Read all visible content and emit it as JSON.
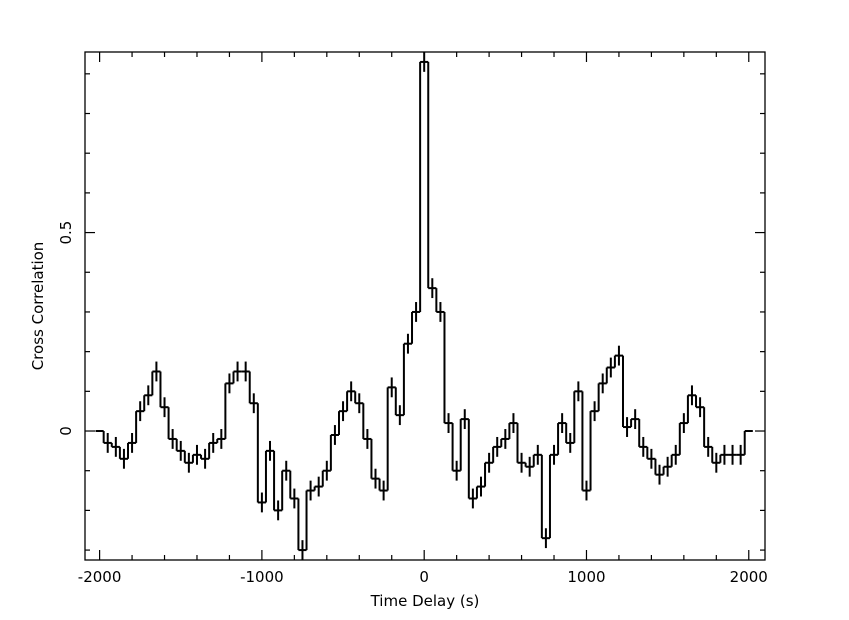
{
  "chart_data": {
    "type": "step",
    "xlabel": "Time Delay (s)",
    "ylabel": "Cross Correlation",
    "xlim": [
      -2090,
      2100
    ],
    "ylim": [
      -0.325,
      0.955
    ],
    "xticks": [
      -2000,
      -1000,
      0,
      1000,
      2000
    ],
    "yticks": [
      0,
      0.5
    ],
    "xminorticks": [
      -1800,
      -1600,
      -1400,
      -1200,
      -800,
      -600,
      -400,
      -200,
      200,
      400,
      600,
      800,
      1200,
      1400,
      1600,
      1800
    ],
    "yminorticks": [
      -0.3,
      -0.2,
      -0.1,
      0.1,
      0.2,
      0.3,
      0.4,
      0.6,
      0.7,
      0.8,
      0.9
    ],
    "color": "#000000",
    "x": [
      -2000,
      -1950,
      -1900,
      -1850,
      -1800,
      -1750,
      -1700,
      -1650,
      -1600,
      -1550,
      -1500,
      -1450,
      -1400,
      -1350,
      -1300,
      -1250,
      -1200,
      -1150,
      -1100,
      -1050,
      -1000,
      -950,
      -900,
      -850,
      -800,
      -750,
      -700,
      -650,
      -600,
      -550,
      -500,
      -450,
      -400,
      -350,
      -300,
      -250,
      -200,
      -150,
      -100,
      -50,
      0,
      50,
      100,
      150,
      200,
      250,
      300,
      350,
      400,
      450,
      500,
      550,
      600,
      650,
      700,
      750,
      800,
      850,
      900,
      950,
      1000,
      1050,
      1100,
      1150,
      1200,
      1250,
      1300,
      1350,
      1400,
      1450,
      1500,
      1550,
      1600,
      1650,
      1700,
      1750,
      1800,
      1850,
      1900,
      1950,
      2000
    ],
    "values": [
      0,
      -0.03,
      -0.04,
      -0.07,
      -0.03,
      0.05,
      0.09,
      0.15,
      0.06,
      -0.02,
      -0.05,
      -0.08,
      -0.06,
      -0.07,
      -0.03,
      -0.02,
      0.12,
      0.15,
      0.15,
      0.07,
      -0.18,
      -0.05,
      -0.2,
      -0.1,
      -0.17,
      -0.3,
      -0.15,
      -0.14,
      -0.1,
      -0.01,
      0.05,
      0.1,
      0.07,
      -0.02,
      -0.12,
      -0.15,
      0.11,
      0.04,
      0.22,
      0.3,
      0.93,
      0.36,
      0.3,
      0.02,
      -0.1,
      0.03,
      -0.17,
      -0.14,
      -0.08,
      -0.04,
      -0.02,
      0.02,
      -0.08,
      -0.09,
      -0.06,
      -0.27,
      -0.06,
      0.02,
      -0.03,
      0.1,
      -0.15,
      0.05,
      0.12,
      0.16,
      0.19,
      0.01,
      0.03,
      -0.04,
      -0.07,
      -0.11,
      -0.09,
      -0.06,
      0.02,
      0.09,
      0.06,
      -0.04,
      -0.08,
      -0.06,
      -0.06,
      -0.06,
      0
    ],
    "errors": [
      0,
      0.025,
      0.025,
      0.025,
      0.025,
      0.025,
      0.025,
      0.025,
      0.025,
      0.025,
      0.025,
      0.025,
      0.025,
      0.025,
      0.025,
      0.025,
      0.025,
      0.025,
      0.025,
      0.025,
      0.025,
      0.025,
      0.025,
      0.025,
      0.025,
      0.025,
      0.025,
      0.025,
      0.025,
      0.025,
      0.025,
      0.025,
      0.025,
      0.025,
      0.025,
      0.025,
      0.025,
      0.025,
      0.025,
      0.025,
      0.025,
      0.025,
      0.025,
      0.025,
      0.025,
      0.025,
      0.025,
      0.025,
      0.025,
      0.025,
      0.025,
      0.025,
      0.025,
      0.025,
      0.025,
      0.025,
      0.025,
      0.025,
      0.025,
      0.025,
      0.025,
      0.025,
      0.025,
      0.025,
      0.025,
      0.025,
      0.025,
      0.025,
      0.025,
      0.025,
      0.025,
      0.025,
      0.025,
      0.025,
      0.025,
      0.025,
      0.025,
      0.025,
      0.025,
      0.025,
      0
    ]
  }
}
